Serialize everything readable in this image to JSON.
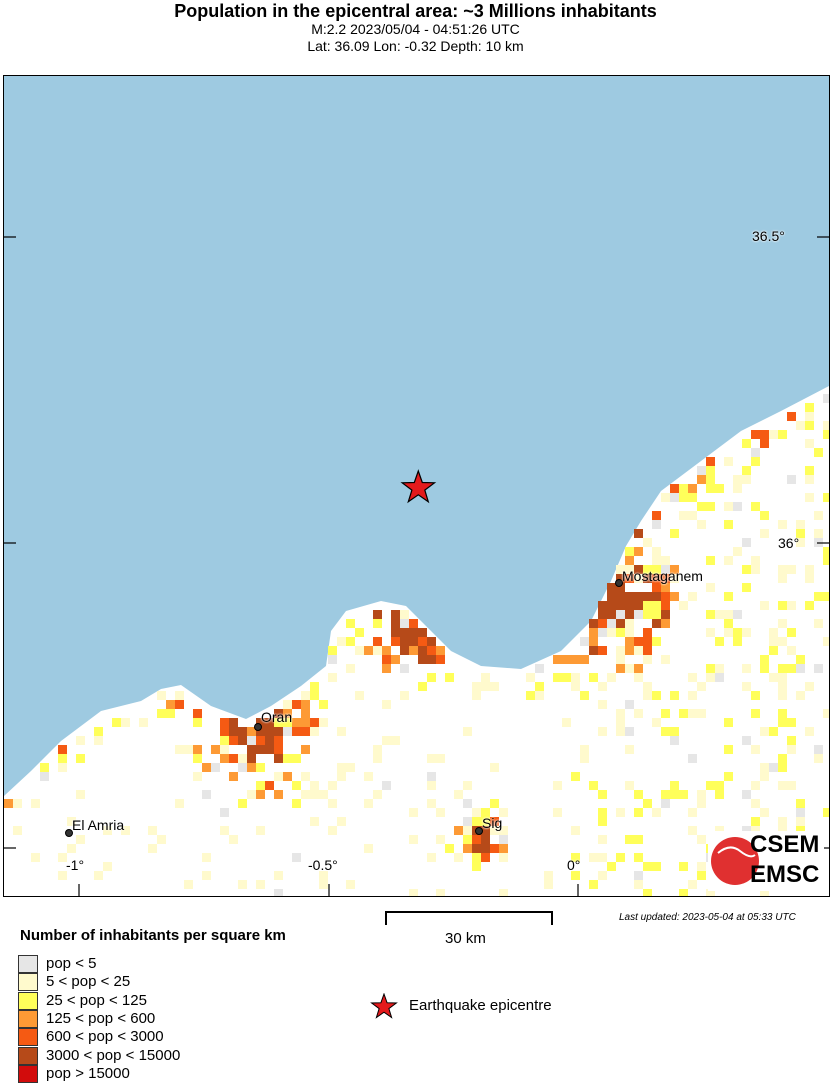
{
  "header": {
    "title": "Population in the epicentral area: ~3 Millions inhabitants",
    "magnitude_time": "M:2.2 2023/05/04 - 04:51:26 UTC",
    "location": "Lat: 36.09 Lon: -0.32 Depth: 10 km"
  },
  "map": {
    "sea_color": "#9ecae1",
    "land_color": "#ffffff",
    "lat_labels": [
      "36.5°",
      "36°"
    ],
    "lon_labels": [
      "-1°",
      "-0.5°",
      "0°"
    ],
    "cities": [
      "Oran",
      "Mostaganem",
      "El Amria",
      "Sig"
    ],
    "epicenter": {
      "lat": 36.09,
      "lon": -0.32,
      "color": "#e41a1c"
    },
    "logo_text": [
      "CSEM",
      "EMSC"
    ]
  },
  "scale_bar": {
    "label": "30 km"
  },
  "last_updated": "Last updated: 2023-05-04 at 05:33 UTC",
  "legend": {
    "title": "Number of inhabitants per square km",
    "items": [
      {
        "label": "pop < 5",
        "color": "#e6e6e6"
      },
      {
        "label": "5 < pop < 25",
        "color": "#fffacd"
      },
      {
        "label": "25 < pop < 125",
        "color": "#ffff5a"
      },
      {
        "label": "125 < pop < 600",
        "color": "#fd9a35"
      },
      {
        "label": "600 < pop < 3000",
        "color": "#f55a13"
      },
      {
        "label": "3000 < pop < 15000",
        "color": "#b64a19"
      },
      {
        "label": "pop > 15000",
        "color": "#d20c0c"
      }
    ],
    "epicentre_label": "Earthquake epicentre"
  }
}
